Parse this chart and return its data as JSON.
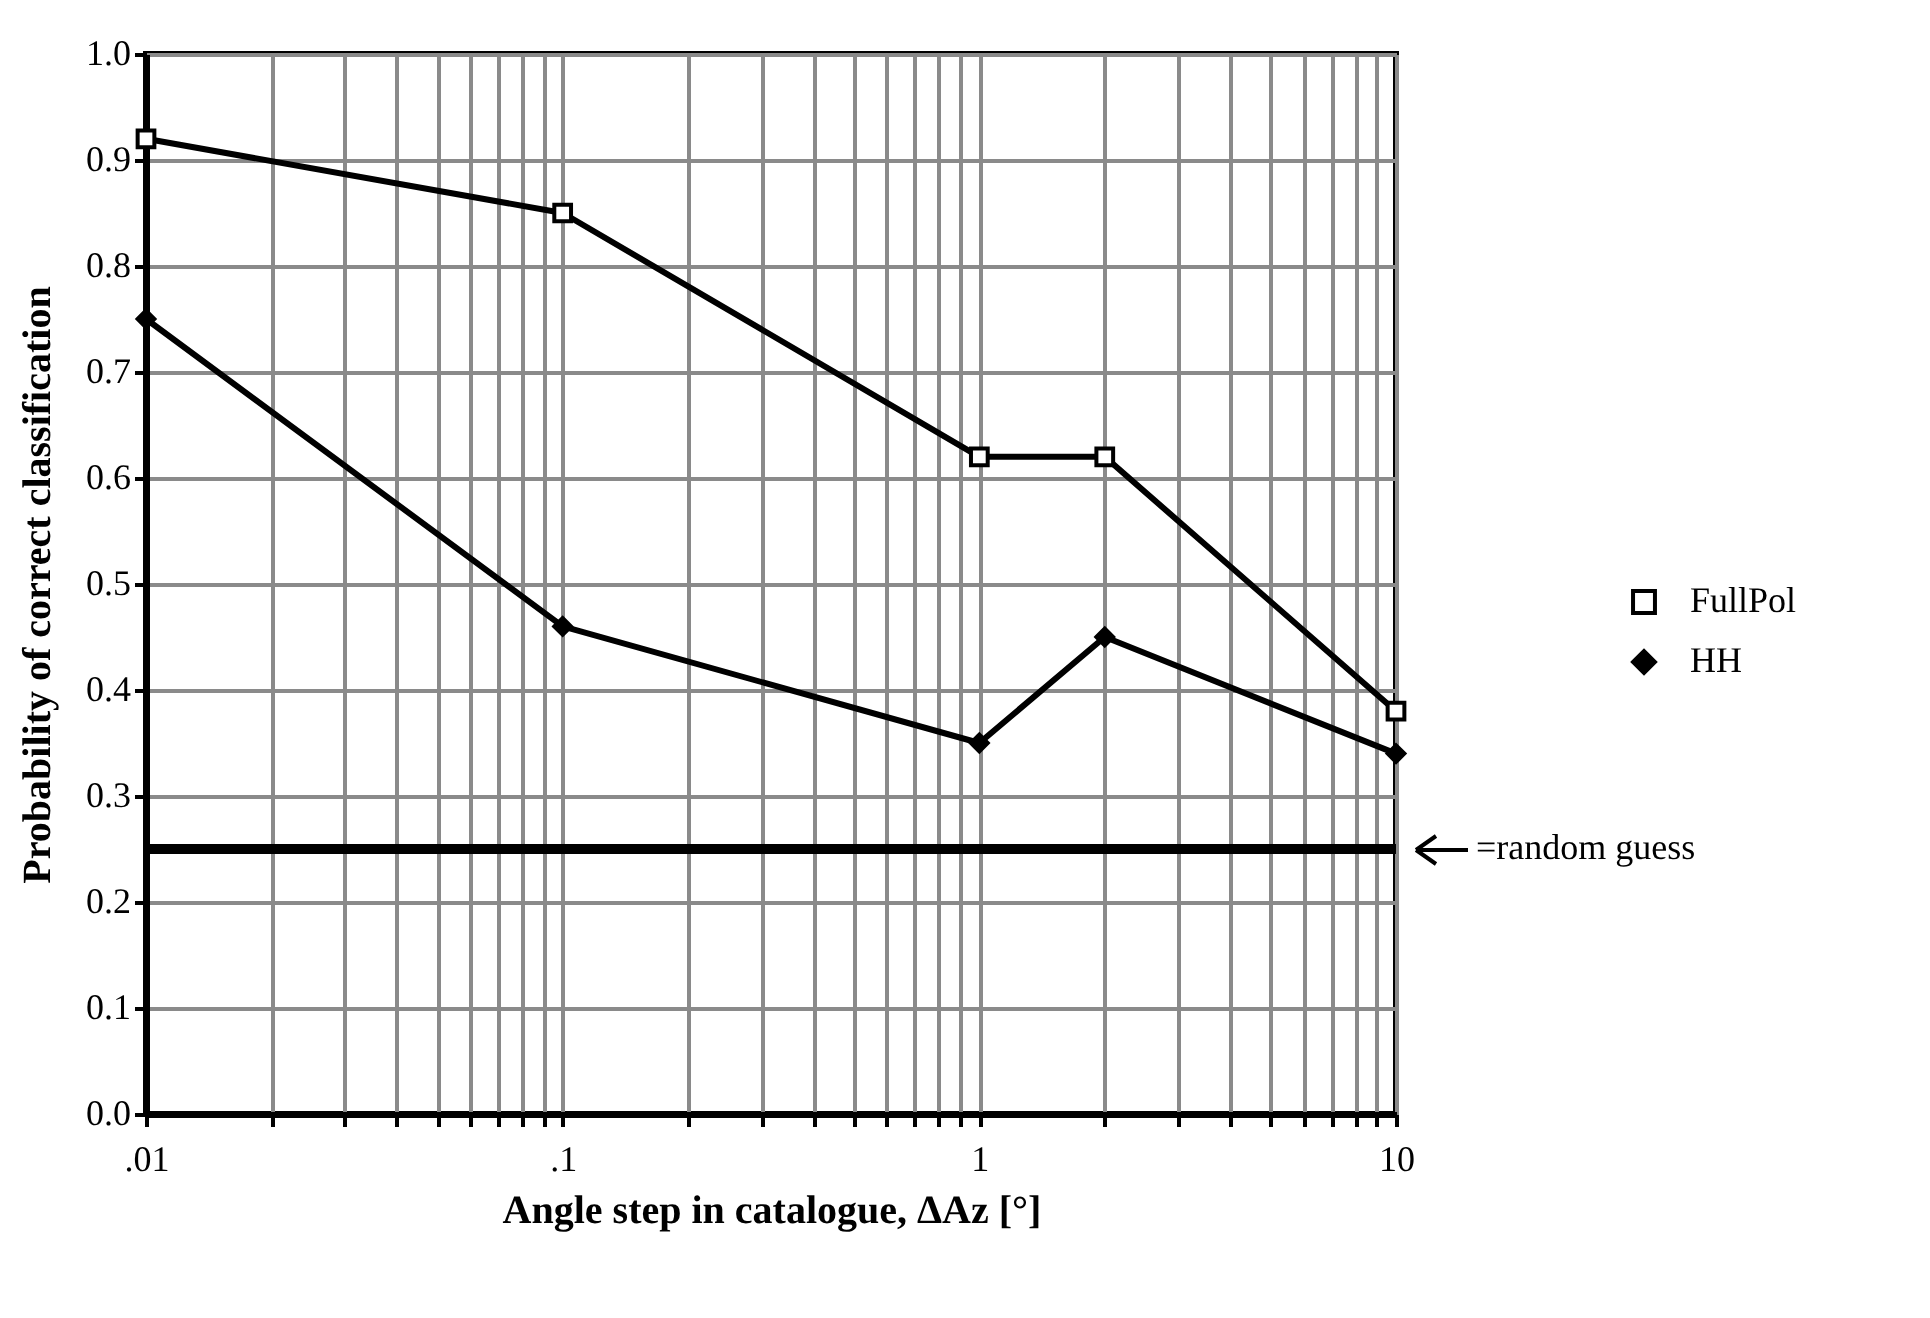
{
  "chart_data": {
    "type": "line",
    "xlabel": "Angle step in catalogue, ΔAz [°]",
    "ylabel": "Probability of correct classification",
    "x": [
      0.01,
      0.1,
      1,
      2,
      10
    ],
    "series": [
      {
        "name": "FullPol",
        "color": "#000000",
        "marker": "square",
        "values": [
          0.92,
          0.85,
          0.62,
          0.62,
          0.38
        ]
      },
      {
        "name": "HH",
        "color": "#000000",
        "marker": "diamond",
        "values": [
          0.75,
          0.46,
          0.35,
          0.45,
          0.34
        ]
      }
    ],
    "log": "x",
    "xlim": [
      0.01,
      10
    ],
    "xticks": [
      {
        "value": 0.01,
        "label": ".01"
      },
      {
        "value": 0.02,
        "label": null
      },
      {
        "value": 0.03,
        "label": null
      },
      {
        "value": 0.04,
        "label": null
      },
      {
        "value": 0.05,
        "label": null
      },
      {
        "value": 0.06,
        "label": null
      },
      {
        "value": 0.07,
        "label": null
      },
      {
        "value": 0.08,
        "label": null
      },
      {
        "value": 0.09,
        "label": null
      },
      {
        "value": 0.1,
        "label": ".1"
      },
      {
        "value": 0.2,
        "label": null
      },
      {
        "value": 0.3,
        "label": null
      },
      {
        "value": 0.4,
        "label": null
      },
      {
        "value": 0.5,
        "label": null
      },
      {
        "value": 0.6,
        "label": null
      },
      {
        "value": 0.7,
        "label": null
      },
      {
        "value": 0.8,
        "label": null
      },
      {
        "value": 0.9,
        "label": null
      },
      1,
      {
        "value": 2,
        "label": null
      },
      {
        "value": 3,
        "label": null
      },
      {
        "value": 4,
        "label": null
      },
      {
        "value": 5,
        "label": null
      },
      {
        "value": 6,
        "label": null
      },
      {
        "value": 7,
        "label": null
      },
      {
        "value": 8,
        "label": null
      },
      {
        "value": 9,
        "label": null
      },
      10
    ],
    "ylim": [
      0,
      1
    ],
    "yticks": [
      {
        "value": 0,
        "label": "0.0"
      },
      0.1,
      0.2,
      0.3,
      0.4,
      0.5,
      0.6,
      0.7,
      0.8,
      0.9,
      {
        "value": 1,
        "label": "1.0"
      }
    ],
    "grid": true,
    "legend": "right",
    "line_style": "solid",
    "ref_lines": [
      {
        "axis": "y",
        "value": 0.25,
        "label": "=random guess",
        "color": "#000000",
        "line_style": "solid"
      }
    ]
  }
}
